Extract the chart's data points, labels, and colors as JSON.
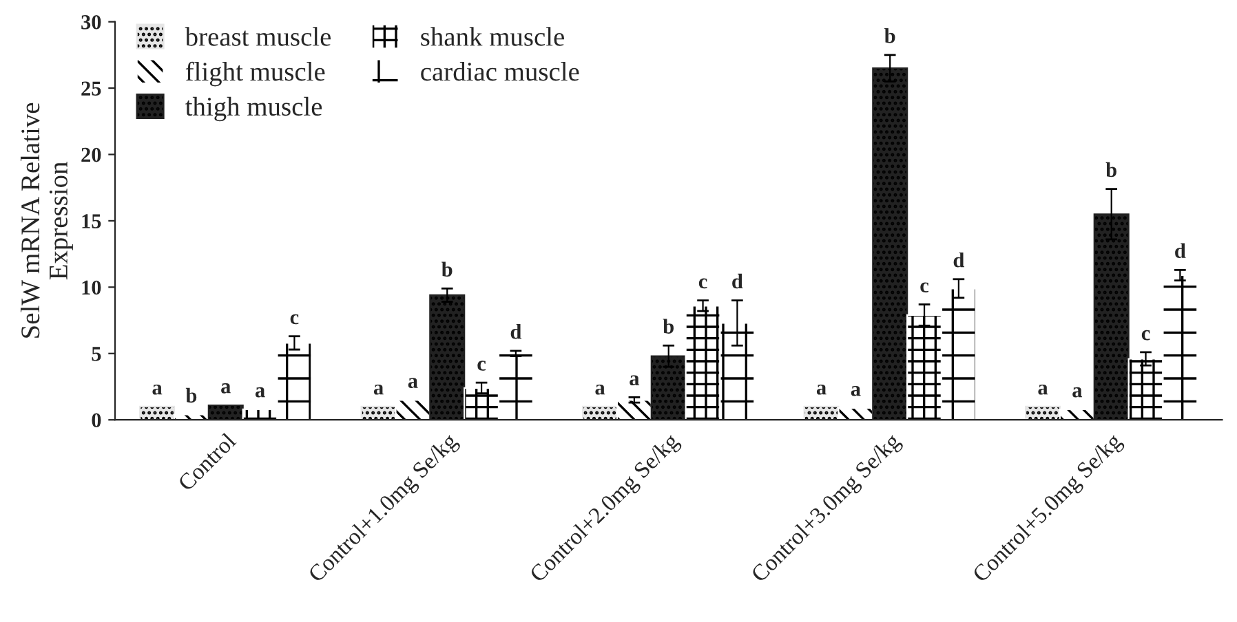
{
  "chart_data": {
    "type": "bar",
    "ylabel": "SelW mRNA Relative Expression",
    "categories": [
      "Control",
      "Control+1.0mg Se/kg",
      "Control+2.0mg Se/kg",
      "Control+3.0mg Se/kg",
      "Control+5.0mg Se/kg"
    ],
    "series": [
      {
        "name": "breast muscle",
        "color": "#e6e6e6",
        "values": [
          1.0,
          1.0,
          1.0,
          1.0,
          1.0
        ],
        "value_labels": [
          "a",
          "a",
          "a",
          "a",
          "a"
        ]
      },
      {
        "name": "flight muscle",
        "color": "#ffffff",
        "values": [
          0.4,
          1.5,
          1.5,
          0.9,
          0.8
        ],
        "errors": [
          null,
          null,
          0.2,
          null,
          null
        ],
        "value_labels": [
          "b",
          "a",
          "a",
          "a",
          "a"
        ]
      },
      {
        "name": "thigh muscle",
        "color": "#222222",
        "values": [
          1.1,
          9.4,
          4.8,
          26.5,
          15.5
        ],
        "errors": [
          null,
          0.5,
          0.8,
          1.0,
          1.9
        ],
        "value_labels": [
          "a",
          "b",
          "b",
          "b",
          "b"
        ]
      },
      {
        "name": "shank muscle",
        "color": "#ffffff",
        "values": [
          0.8,
          2.4,
          8.6,
          7.9,
          4.6
        ],
        "errors": [
          null,
          0.4,
          0.4,
          0.8,
          0.5
        ],
        "value_labels": [
          "a",
          "c",
          "c",
          "c",
          "c"
        ]
      },
      {
        "name": "cardiac muscle",
        "color": "#ffffff",
        "values": [
          5.8,
          5.0,
          7.3,
          9.9,
          10.9
        ],
        "errors": [
          0.5,
          0.2,
          1.7,
          0.7,
          0.4
        ],
        "value_labels": [
          "c",
          "d",
          "d",
          "d",
          "d"
        ]
      }
    ],
    "ylim": [
      0,
      30
    ],
    "yticks": [
      0,
      5,
      10,
      15,
      20,
      25,
      30
    ],
    "legend": "top left",
    "grid": false
  }
}
